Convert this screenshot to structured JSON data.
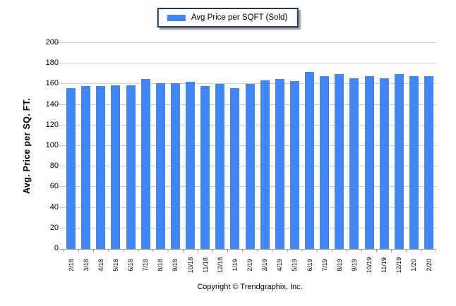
{
  "legend": {
    "label": "Avg Price per SQFT (Sold)",
    "swatch_color": "#4285f4"
  },
  "y_axis": {
    "title": "Avg. Price per SQ. FT."
  },
  "footer": {
    "text": "Copyright © Trendgraphix, Inc."
  },
  "colors": {
    "bar": "#4285f4",
    "gridline": "#cccccc",
    "baseline": "#8f8f8f",
    "legend_border": "#1f3a68"
  },
  "chart_data": {
    "type": "bar",
    "title": "Avg Price per SQFT (Sold)",
    "categories": [
      "2/18",
      "3/18",
      "4/18",
      "5/18",
      "6/18",
      "7/18",
      "8/18",
      "9/18",
      "10/18",
      "11/18",
      "12/18",
      "1/19",
      "2/19",
      "3/19",
      "4/19",
      "5/19",
      "6/19",
      "7/19",
      "8/19",
      "9/19",
      "10/19",
      "11/19",
      "12/19",
      "1/20",
      "2/20"
    ],
    "values": [
      156,
      158,
      158,
      159,
      159,
      165,
      161,
      161,
      162,
      158,
      160,
      156,
      160,
      164,
      165,
      163,
      172,
      168,
      170,
      166,
      168,
      166,
      170,
      168,
      168
    ],
    "xlabel": "",
    "ylabel": "Avg. Price per SQ. FT.",
    "ylim": [
      0,
      200
    ],
    "ytick_step": 20,
    "grid": true,
    "legend_position": "top-center",
    "bar_color": "#4285f4"
  }
}
